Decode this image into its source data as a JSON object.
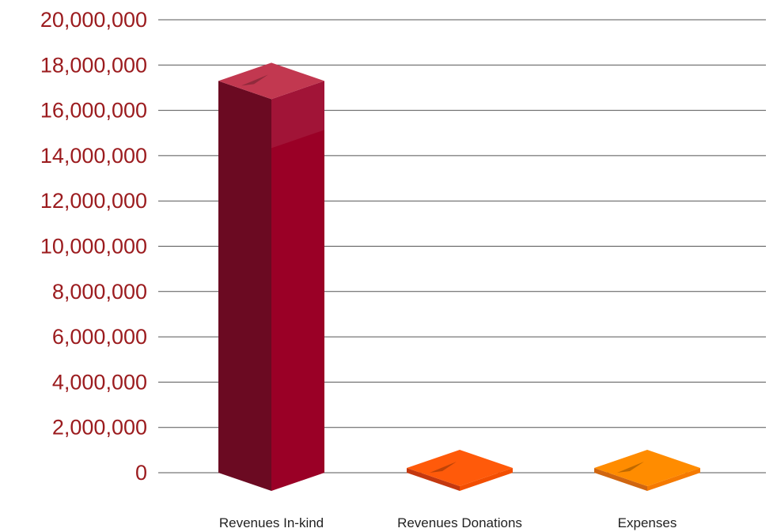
{
  "chart_data": {
    "type": "bar",
    "style": "3d-columns",
    "categories": [
      "Revenues In-kind",
      "Revenues Donations",
      "Expenses"
    ],
    "values": [
      17300000,
      0,
      0
    ],
    "ylim": [
      0,
      20000000
    ],
    "yticks": [
      0,
      2000000,
      4000000,
      6000000,
      8000000,
      10000000,
      12000000,
      14000000,
      16000000,
      18000000,
      20000000
    ],
    "ytick_labels": [
      "0",
      "2,000,000",
      "4,000,000",
      "6,000,000",
      "8,000,000",
      "10,000,000",
      "12,000,000",
      "14,000,000",
      "16,000,000",
      "18,000,000",
      "20,000,000"
    ],
    "grid": true,
    "legend": "none",
    "colors": {
      "axis_labels": "#9B1B1E",
      "gridline": "#555555",
      "bars": [
        {
          "front": "#9A0026",
          "side": "#6B0A22",
          "top": "#C23850"
        },
        {
          "front": "#F24E00",
          "side": "#C4380F",
          "top": "#FF5A0A"
        },
        {
          "front": "#F57A00",
          "side": "#D06610",
          "top": "#FF8C00"
        }
      ]
    }
  }
}
